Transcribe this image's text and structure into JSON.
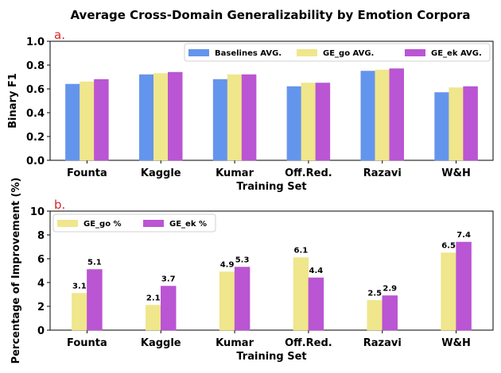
{
  "title": "Average Cross-Domain Generalizability by Emotion Corpora",
  "colors": {
    "baseline": "#6495ED",
    "ge_go": "#F0E68C",
    "ge_ek": "#BA55D3",
    "panel_label": "#d62728"
  },
  "chart_data": [
    {
      "type": "bar",
      "panel_label": "a.",
      "categories": [
        "Founta",
        "Kaggle",
        "Kumar",
        "Off.Red.",
        "Razavi",
        "W&H"
      ],
      "series": [
        {
          "name": "Baselines AVG.",
          "values": [
            0.64,
            0.72,
            0.68,
            0.62,
            0.75,
            0.57
          ]
        },
        {
          "name": "GE_go AVG.",
          "values": [
            0.66,
            0.73,
            0.72,
            0.65,
            0.76,
            0.61
          ]
        },
        {
          "name": "GE_ek AVG.",
          "values": [
            0.68,
            0.74,
            0.72,
            0.65,
            0.77,
            0.62
          ]
        }
      ],
      "xlabel": "Training Set",
      "ylabel": "Binary F1",
      "ylim": [
        0.0,
        1.0
      ],
      "yticks": [
        "0.0",
        "0.2",
        "0.4",
        "0.6",
        "0.8",
        "1.0"
      ],
      "legend_position": "top-right"
    },
    {
      "type": "bar",
      "panel_label": "b.",
      "categories": [
        "Founta",
        "Kaggle",
        "Kumar",
        "Off.Red.",
        "Razavi",
        "W&H"
      ],
      "series": [
        {
          "name": "GE_go %",
          "values": [
            3.1,
            2.1,
            4.9,
            6.1,
            2.5,
            6.5
          ],
          "labels": [
            "3.1",
            "2.1",
            "4.9",
            "6.1",
            "2.5",
            "6.5"
          ]
        },
        {
          "name": "GE_ek %",
          "values": [
            5.1,
            3.7,
            5.3,
            4.4,
            2.9,
            7.4
          ],
          "labels": [
            "5.1",
            "3.7",
            "5.3",
            "4.4",
            "2.9",
            "7.4"
          ]
        }
      ],
      "xlabel": "Training Set",
      "ylabel": "Percentage of Improvement (%)",
      "ylim": [
        0,
        10
      ],
      "yticks": [
        "0",
        "2",
        "4",
        "6",
        "8",
        "10"
      ],
      "legend_position": "top-left"
    }
  ]
}
